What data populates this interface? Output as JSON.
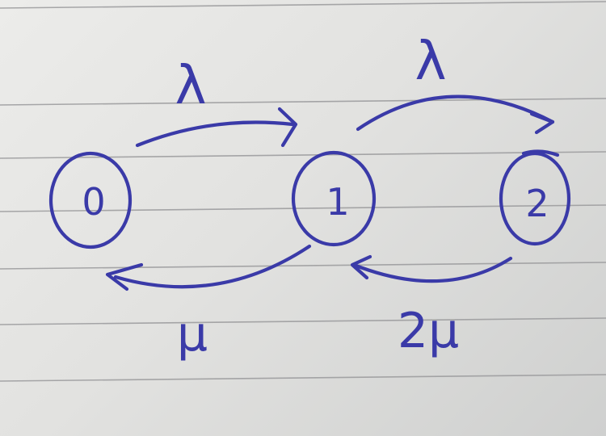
{
  "colors": {
    "ink": "#3a3aa8",
    "paper": "#e6e6e4",
    "rule": "#9a9a9c"
  },
  "diagram": {
    "states": [
      {
        "label": "0"
      },
      {
        "label": "1"
      },
      {
        "label": "2"
      }
    ],
    "transitions": [
      {
        "from": "0",
        "to": "1",
        "label": "λ"
      },
      {
        "from": "1",
        "to": "2",
        "label": "λ"
      },
      {
        "from": "1",
        "to": "0",
        "label": "μ"
      },
      {
        "from": "2",
        "to": "1",
        "label": "2μ"
      }
    ]
  }
}
